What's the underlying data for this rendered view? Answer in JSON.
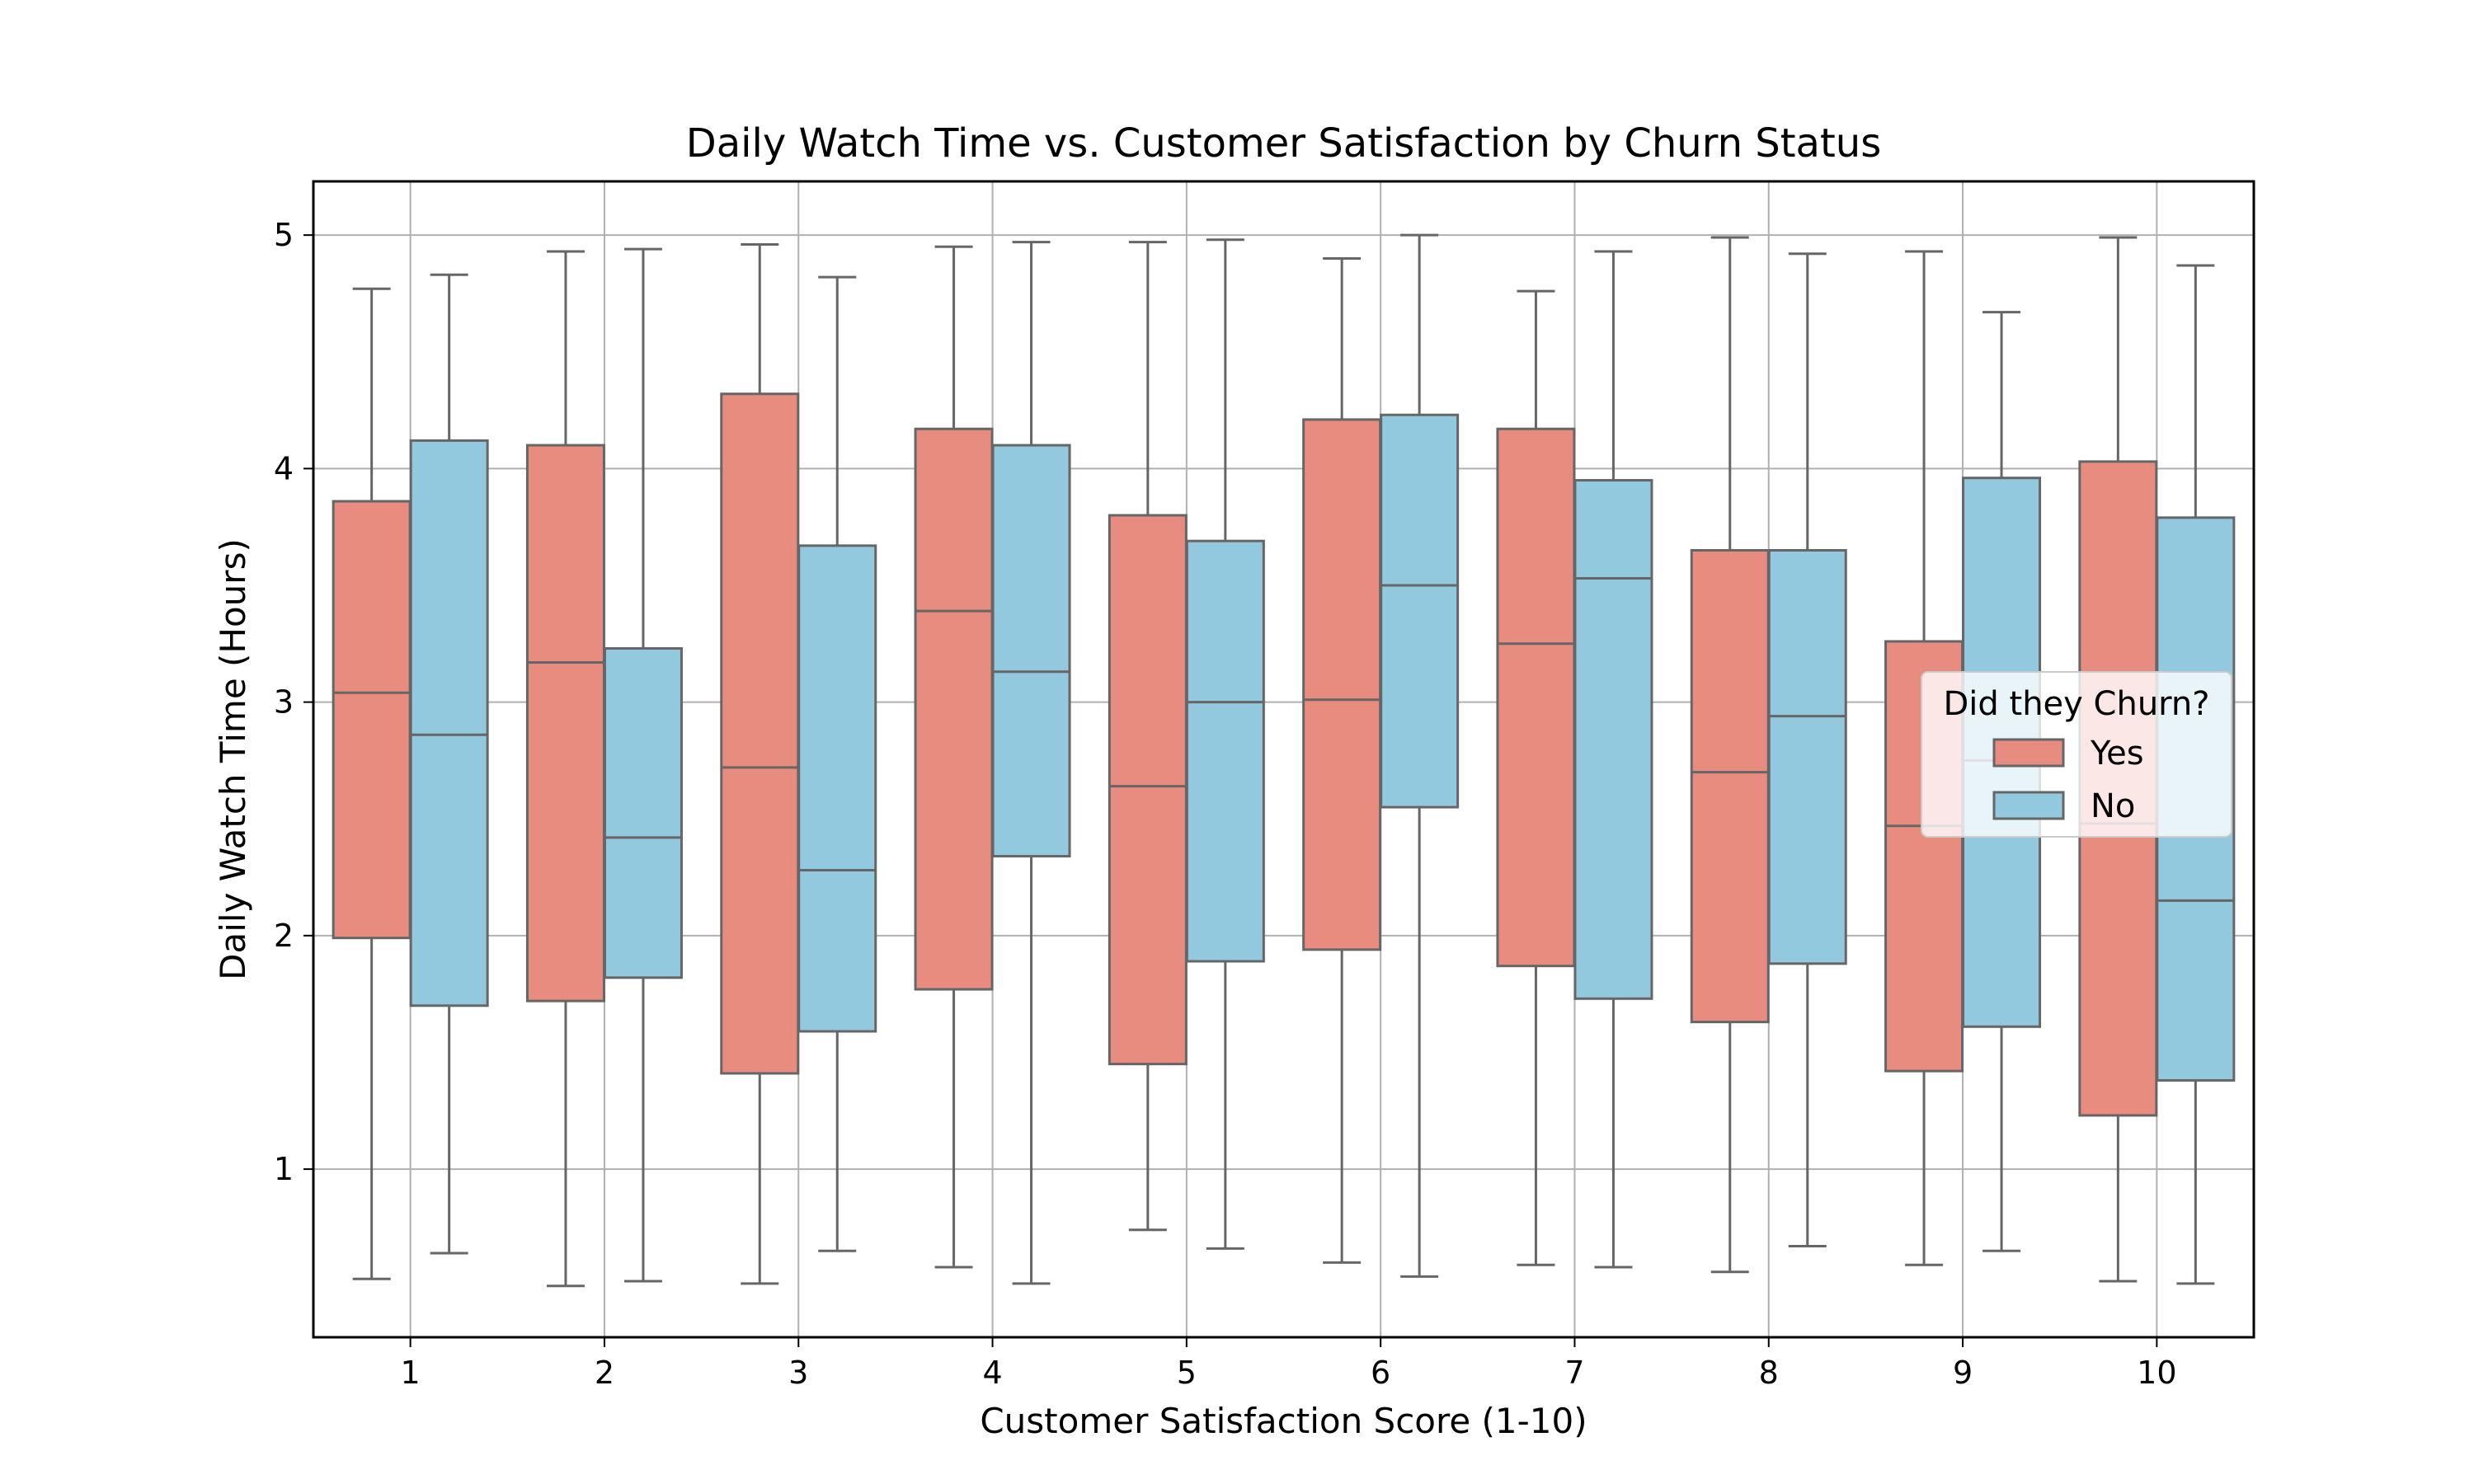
{
  "chart_data": {
    "type": "box",
    "title": "Daily Watch Time vs. Customer Satisfaction by Churn Status",
    "xlabel": "Customer Satisfaction Score (1-10)",
    "ylabel": "Daily Watch Time (Hours)",
    "categories": [
      "1",
      "2",
      "3",
      "4",
      "5",
      "6",
      "7",
      "8",
      "9",
      "10"
    ],
    "yticks": [
      "1",
      "2",
      "3",
      "4",
      "5"
    ],
    "ylim": [
      0.28,
      5.23
    ],
    "grid": true,
    "legend": {
      "title": "Did they Churn?",
      "placement": "center-right"
    },
    "series": [
      {
        "name": "Yes",
        "color": "#e88c80",
        "boxes": [
          {
            "min": 0.53,
            "q1": 1.99,
            "median": 3.04,
            "q3": 3.86,
            "max": 4.77
          },
          {
            "min": 0.5,
            "q1": 1.72,
            "median": 3.17,
            "q3": 4.1,
            "max": 4.93
          },
          {
            "min": 0.51,
            "q1": 1.41,
            "median": 2.72,
            "q3": 4.32,
            "max": 4.96
          },
          {
            "min": 0.58,
            "q1": 1.77,
            "median": 3.39,
            "q3": 4.17,
            "max": 4.95
          },
          {
            "min": 0.74,
            "q1": 1.45,
            "median": 2.64,
            "q3": 3.8,
            "max": 4.97
          },
          {
            "min": 0.6,
            "q1": 1.94,
            "median": 3.01,
            "q3": 4.21,
            "max": 4.9
          },
          {
            "min": 0.59,
            "q1": 1.87,
            "median": 3.25,
            "q3": 4.17,
            "max": 4.76
          },
          {
            "min": 0.56,
            "q1": 1.63,
            "median": 2.7,
            "q3": 3.65,
            "max": 4.99
          },
          {
            "min": 0.59,
            "q1": 1.42,
            "median": 2.47,
            "q3": 3.26,
            "max": 4.93
          },
          {
            "min": 0.52,
            "q1": 1.23,
            "median": 2.48,
            "q3": 4.03,
            "max": 4.99
          }
        ]
      },
      {
        "name": "No",
        "color": "#93c9df",
        "boxes": [
          {
            "min": 0.64,
            "q1": 1.7,
            "median": 2.86,
            "q3": 4.12,
            "max": 4.83
          },
          {
            "min": 0.52,
            "q1": 1.82,
            "median": 2.42,
            "q3": 3.23,
            "max": 4.94
          },
          {
            "min": 0.65,
            "q1": 1.59,
            "median": 2.28,
            "q3": 3.67,
            "max": 4.82
          },
          {
            "min": 0.51,
            "q1": 2.34,
            "median": 3.13,
            "q3": 4.1,
            "max": 4.97
          },
          {
            "min": 0.66,
            "q1": 1.89,
            "median": 3.0,
            "q3": 3.69,
            "max": 4.98
          },
          {
            "min": 0.54,
            "q1": 2.55,
            "median": 3.5,
            "q3": 4.23,
            "max": 5.0
          },
          {
            "min": 0.58,
            "q1": 1.73,
            "median": 3.53,
            "q3": 3.95,
            "max": 4.93
          },
          {
            "min": 0.67,
            "q1": 1.88,
            "median": 2.94,
            "q3": 3.65,
            "max": 4.92
          },
          {
            "min": 0.65,
            "q1": 1.61,
            "median": 2.75,
            "q3": 3.96,
            "max": 4.67
          },
          {
            "min": 0.51,
            "q1": 1.38,
            "median": 2.15,
            "q3": 3.79,
            "max": 4.87
          }
        ]
      }
    ]
  }
}
